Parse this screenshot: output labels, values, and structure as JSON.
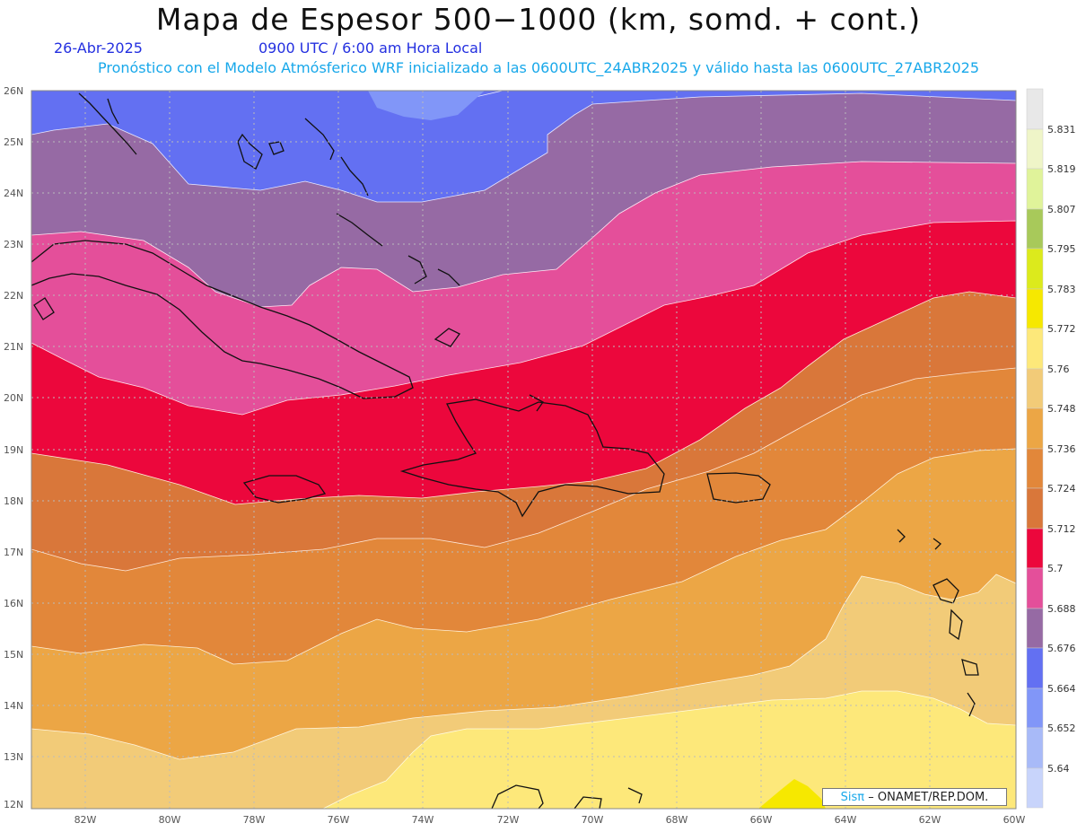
{
  "map": {
    "title": "Mapa de Espesor 500−1000 (km, somd. + cont.)",
    "date": "26-Abr-2025",
    "time": "0900 UTC / 6:00 am Hora Local",
    "model_info": "Pronóstico con el Modelo Atmósferico WRF inicializado a las 0600UTC_24ABR2025 y válido hasta las  0600UTC_27ABR2025",
    "credit_brand": "Sisπ",
    "credit_text": "– ONAMET/REP.DOM.",
    "lat_labels": [
      "26N",
      "25N",
      "24N",
      "23N",
      "22N",
      "21N",
      "20N",
      "19N",
      "18N",
      "17N",
      "16N",
      "15N",
      "14N",
      "13N",
      "12N"
    ],
    "lon_labels": [
      "82W",
      "80W",
      "78W",
      "76W",
      "74W",
      "72W",
      "70W",
      "68W",
      "66W",
      "64W",
      "62W",
      "60W"
    ],
    "extent": {
      "lon_min": -83.2,
      "lon_max": -60,
      "lat_min": 12,
      "lat_max": 26
    },
    "colorbar": {
      "labels": [
        "5.831",
        "5.819",
        "5.807",
        "5.795",
        "5.783",
        "5.772",
        "5.76",
        "5.748",
        "5.736",
        "5.724",
        "5.712",
        "5.7",
        "5.688",
        "5.676",
        "5.664",
        "5.652",
        "5.64"
      ],
      "colors": [
        "#e8e8e8",
        "#eff5c8",
        "#e0f39a",
        "#a8c95a",
        "#dcea1c",
        "#f6e800",
        "#fde87a",
        "#f2cb78",
        "#eca645",
        "#e2873a",
        "#d9773a",
        "#ec073c",
        "#e44f9a",
        "#966aa4",
        "#6370f2",
        "#8196f8",
        "#a8baf8",
        "#c8d4fb"
      ]
    }
  }
}
